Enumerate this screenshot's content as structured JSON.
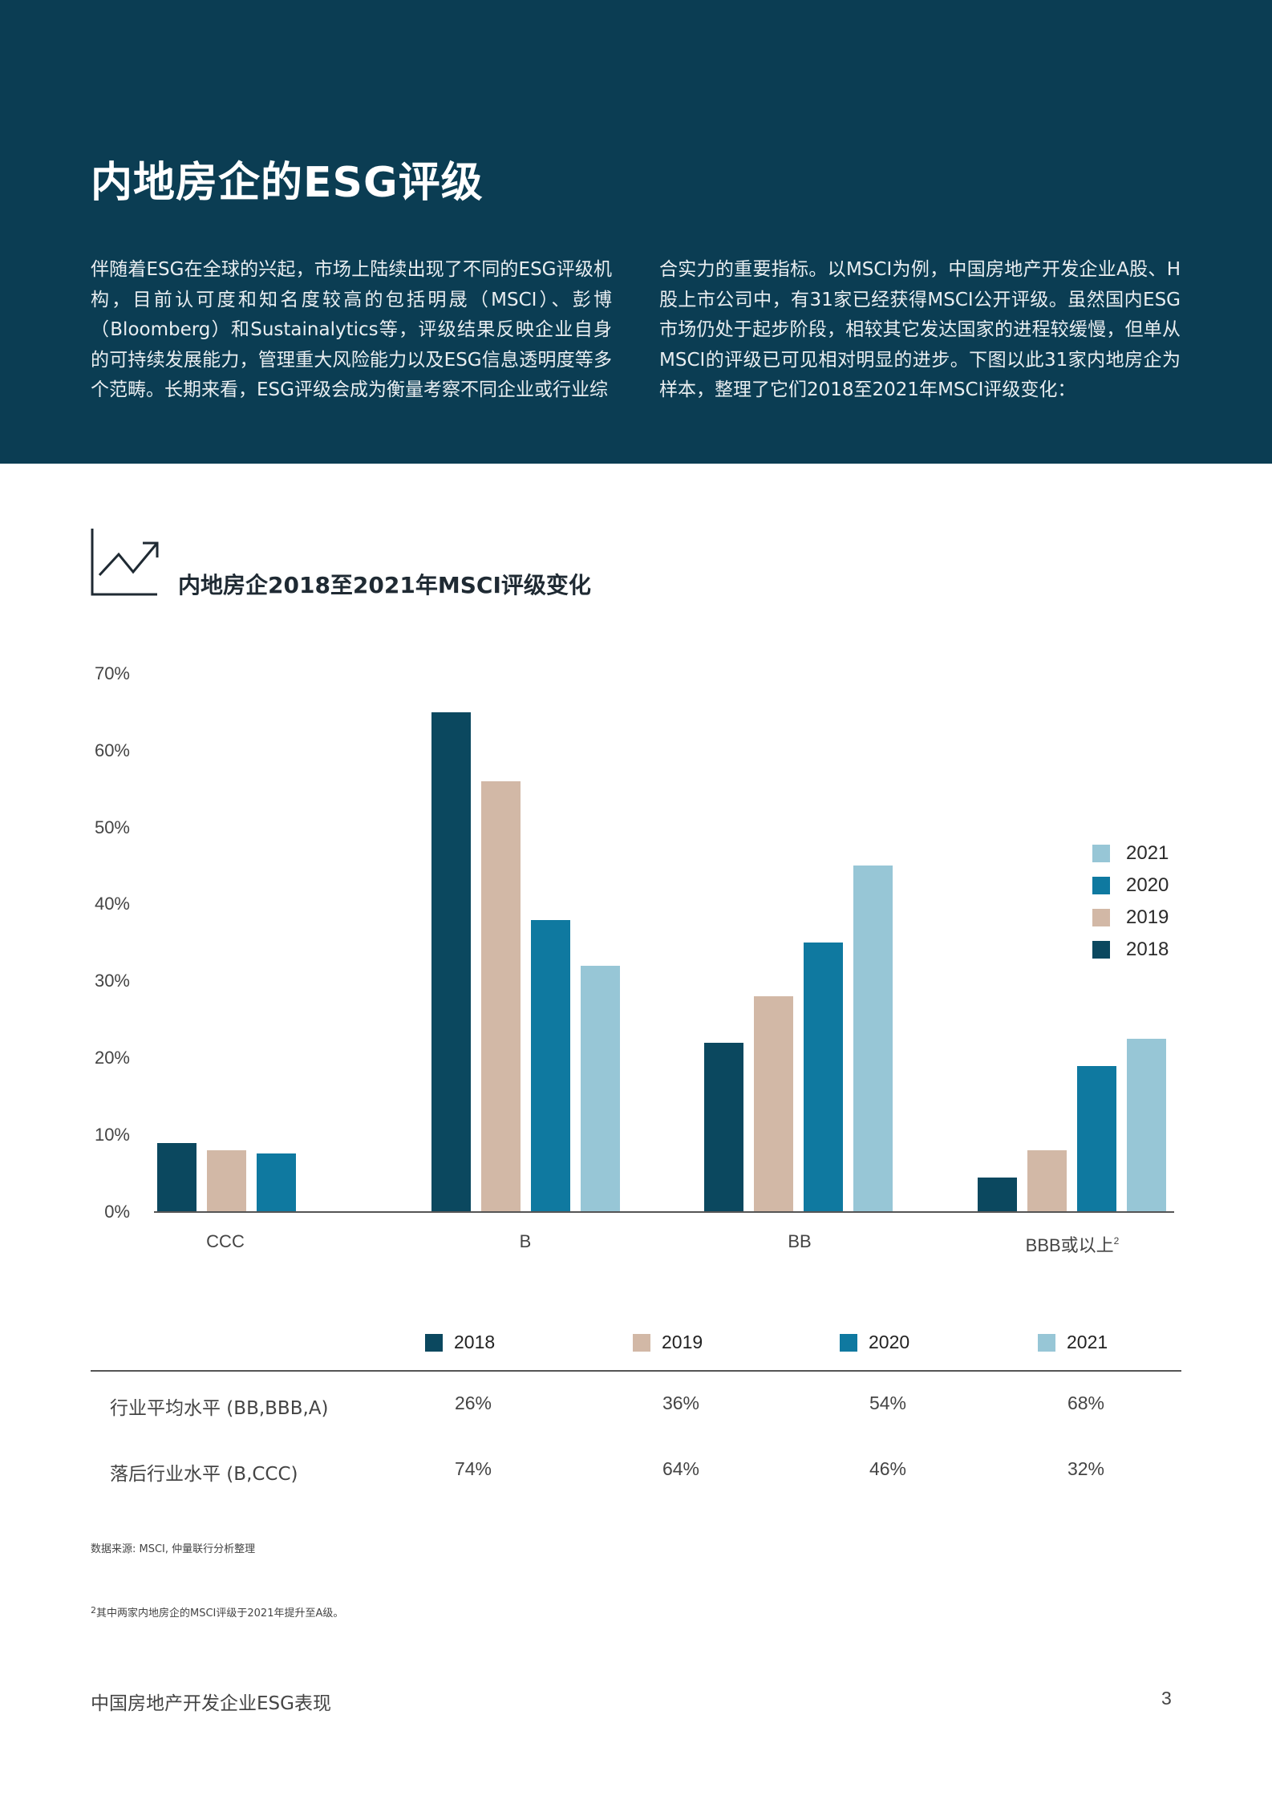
{
  "header": {
    "title": "内地房企的ESG评级",
    "intro_left": "伴随着ESG在全球的兴起，市场上陆续出现了不同的ESG评级机构，目前认可度和知名度较高的包括明晟（MSCI）、彭博（Bloomberg）和Sustainalytics等，评级结果反映企业自身的可持续发展能力，管理重大风险能力以及ESG信息透明度等多个范畴。长期来看，ESG评级会成为衡量考察不同企业或行业综",
    "intro_right": "合实力的重要指标。以MSCI为例，中国房地产开发企业A股、H股上市公司中，有31家已经获得MSCI公开评级。虽然国内ESG市场仍处于起步阶段，相较其它发达国家的进程较缓慢，但单从MSCI的评级已可见相对明显的进步。下图以此31家内地房企为样本，整理了它们2018至2021年MSCI评级变化："
  },
  "chart_section": {
    "icon": "trend-up-chart-icon",
    "title": "内地房企2018至2021年MSCI评级变化"
  },
  "colors": {
    "header_bg": "#0b3d53",
    "y2018": "#0b485f",
    "y2019": "#d2b8a6",
    "y2020": "#0f79a0",
    "y2021": "#97c6d6"
  },
  "chart_data": {
    "type": "bar",
    "title": "内地房企2018至2021年MSCI评级变化",
    "xlabel": "",
    "ylabel": "",
    "ylim": [
      0,
      70
    ],
    "yticks": [
      "0%",
      "10%",
      "20%",
      "30%",
      "40%",
      "50%",
      "60%",
      "70%"
    ],
    "grid": false,
    "legend_position": "right",
    "categories": [
      "CCC",
      "B",
      "BB",
      "BBB或以上"
    ],
    "category_superscripts": [
      "",
      "",
      "",
      "2"
    ],
    "series": [
      {
        "name": "2018",
        "values": [
          9,
          65,
          22,
          4.5
        ]
      },
      {
        "name": "2019",
        "values": [
          8,
          56,
          28,
          8
        ]
      },
      {
        "name": "2020",
        "values": [
          7.6,
          38,
          35,
          19
        ]
      },
      {
        "name": "2021",
        "values": [
          0,
          32,
          45,
          22.5
        ]
      }
    ],
    "legend": [
      "2021",
      "2020",
      "2019",
      "2018"
    ]
  },
  "summary_table": {
    "columns": [
      "2018",
      "2019",
      "2020",
      "2021"
    ],
    "rows": [
      {
        "label": "行业平均水平 (BB,BBB,A)",
        "values": [
          "26%",
          "36%",
          "54%",
          "68%"
        ]
      },
      {
        "label": "落后行业水平 (B,CCC)",
        "values": [
          "74%",
          "64%",
          "46%",
          "32%"
        ]
      }
    ]
  },
  "source": "数据来源: MSCI, 仲量联行分析整理",
  "footnote": {
    "marker": "2",
    "text": "其中两家内地房企的MSCI评级于2021年提升至A级。"
  },
  "footer": {
    "title": "中国房地产开发企业ESG表现",
    "page_number": "3"
  }
}
